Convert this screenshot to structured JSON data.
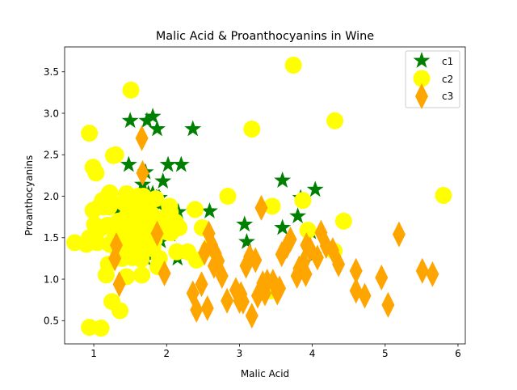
{
  "chart_data": {
    "type": "scatter",
    "title": "Malic Acid & Proanthocyanins in Wine",
    "xlabel": "Malic Acid",
    "ylabel": "Proanthocyanins",
    "xlim": [
      0.6,
      6.1
    ],
    "ylim": [
      0.22,
      3.8
    ],
    "xticks": [
      1,
      2,
      3,
      4,
      5,
      6
    ],
    "yticks": [
      0.5,
      1.0,
      1.5,
      2.0,
      2.5,
      3.0,
      3.5
    ],
    "xtick_labels": [
      "1",
      "2",
      "3",
      "4",
      "5",
      "6"
    ],
    "ytick_labels": [
      "0.5",
      "1.0",
      "1.5",
      "2.0",
      "2.5",
      "3.0",
      "3.5"
    ],
    "grid": false,
    "legend": "top-right",
    "series": [
      {
        "name": "c1",
        "marker": "star",
        "color": "#008000",
        "points": [
          [
            1.71,
            2.29
          ],
          [
            1.78,
            1.28
          ],
          [
            2.36,
            2.81
          ],
          [
            1.95,
            2.18
          ],
          [
            2.59,
            1.82
          ],
          [
            1.76,
            1.97
          ],
          [
            1.87,
            1.98
          ],
          [
            2.15,
            1.25
          ],
          [
            1.64,
            1.98
          ],
          [
            1.35,
            1.85
          ],
          [
            2.16,
            1.81
          ],
          [
            1.48,
            2.38
          ],
          [
            1.73,
            1.57
          ],
          [
            1.73,
            1.81
          ],
          [
            1.87,
            2.81
          ],
          [
            1.81,
            2.96
          ],
          [
            1.92,
            1.46
          ],
          [
            1.57,
            1.97
          ],
          [
            1.59,
            1.66
          ],
          [
            3.1,
            1.45
          ],
          [
            1.63,
            1.35
          ],
          [
            3.8,
            1.76
          ],
          [
            1.86,
            1.98
          ],
          [
            1.6,
            1.38
          ],
          [
            1.81,
            1.95
          ],
          [
            2.05,
            1.54
          ],
          [
            1.77,
            1.86
          ],
          [
            1.72,
            1.66
          ],
          [
            1.9,
            1.98
          ],
          [
            1.68,
            1.57
          ],
          [
            1.5,
            2.01
          ],
          [
            1.66,
            1.63
          ],
          [
            1.83,
            1.85
          ],
          [
            1.53,
            1.66
          ],
          [
            1.8,
            2.01
          ],
          [
            1.81,
            1.92
          ],
          [
            1.64,
            1.81
          ],
          [
            1.65,
            1.75
          ],
          [
            1.5,
            2.91
          ],
          [
            3.59,
            2.19
          ],
          [
            1.71,
            1.25
          ],
          [
            3.84,
            1.98
          ],
          [
            1.89,
            1.98
          ],
          [
            3.98,
            1.57
          ],
          [
            1.77,
            1.42
          ],
          [
            4.04,
            2.08
          ],
          [
            3.59,
            1.62
          ],
          [
            1.68,
            2.02
          ],
          [
            2.02,
            2.38
          ],
          [
            1.73,
            1.65
          ],
          [
            1.73,
            2.91
          ],
          [
            1.65,
            1.46
          ],
          [
            1.75,
            2.03
          ],
          [
            1.9,
            1.66
          ],
          [
            1.67,
            2.14
          ],
          [
            1.73,
            1.87
          ],
          [
            1.7,
            1.87
          ],
          [
            1.97,
            1.85
          ],
          [
            1.43,
            2.0
          ],
          [
            3.07,
            1.66
          ],
          [
            4.02,
            1.29
          ],
          [
            2.2,
            2.38
          ],
          [
            1.81,
            2.03
          ],
          [
            1.68,
            1.47
          ],
          [
            1.99,
            1.72
          ],
          [
            2.06,
            1.7
          ]
        ]
      },
      {
        "name": "c2",
        "marker": "circle",
        "color": "#ffff00",
        "points": [
          [
            0.94,
            0.42
          ],
          [
            1.1,
            0.41
          ],
          [
            1.36,
            0.62
          ],
          [
            1.25,
            0.73
          ],
          [
            1.13,
            1.87
          ],
          [
            1.45,
            1.03
          ],
          [
            1.21,
            1.96
          ],
          [
            1.01,
            1.66
          ],
          [
            1.17,
            1.05
          ],
          [
            0.94,
            2.76
          ],
          [
            1.19,
            1.65
          ],
          [
            1.61,
            2.0
          ],
          [
            1.51,
            3.28
          ],
          [
            1.66,
            1.05
          ],
          [
            1.67,
            1.42
          ],
          [
            1.09,
            1.61
          ],
          [
            1.88,
            1.15
          ],
          [
            3.87,
            1.95
          ],
          [
            1.34,
            1.46
          ],
          [
            1.3,
            2.5
          ],
          [
            1.12,
            1.95
          ],
          [
            3.17,
            2.81
          ],
          [
            0.94,
            1.5
          ],
          [
            1.1,
            1.9
          ],
          [
            2.84,
            2.0
          ],
          [
            1.41,
            1.92
          ],
          [
            1.21,
            1.87
          ],
          [
            1.07,
            1.87
          ],
          [
            1.22,
            1.42
          ],
          [
            2.12,
            1.69
          ],
          [
            1.39,
            1.25
          ],
          [
            3.74,
            3.58
          ],
          [
            0.9,
            1.42
          ],
          [
            1.05,
            1.44
          ],
          [
            1.2,
            1.18
          ],
          [
            1.21,
            1.94
          ],
          [
            4.31,
            2.91
          ],
          [
            2.39,
            1.84
          ],
          [
            1.29,
            1.5
          ],
          [
            5.8,
            2.01
          ],
          [
            2.49,
            1.62
          ],
          [
            1.58,
            1.3
          ],
          [
            1.73,
            1.48
          ],
          [
            1.53,
            1.45
          ],
          [
            1.5,
            1.73
          ],
          [
            1.6,
            1.91
          ],
          [
            2.04,
            1.88
          ],
          [
            1.34,
            1.7
          ],
          [
            2.06,
            1.56
          ],
          [
            4.43,
            1.7
          ],
          [
            1.45,
            1.29
          ],
          [
            1.67,
            1.98
          ],
          [
            1.79,
            1.37
          ],
          [
            3.45,
            1.88
          ],
          [
            2.0,
            1.57
          ],
          [
            0.74,
            1.44
          ],
          [
            1.21,
            2.03
          ],
          [
            1.67,
            1.67
          ],
          [
            1.72,
            1.73
          ],
          [
            2.14,
            1.33
          ],
          [
            1.56,
            1.62
          ],
          [
            1.26,
            1.62
          ],
          [
            1.83,
            1.5
          ],
          [
            0.99,
            2.35
          ],
          [
            1.86,
            1.62
          ],
          [
            1.7,
            1.82
          ],
          [
            1.51,
            1.46
          ],
          [
            2.17,
            1.62
          ],
          [
            1.73,
            1.56
          ],
          [
            1.85,
            1.59
          ],
          [
            1.47,
            1.86
          ],
          [
            1.97,
            1.61
          ],
          [
            1.81,
            1.38
          ],
          [
            1.34,
            1.31
          ],
          [
            1.91,
            1.64
          ],
          [
            1.47,
            1.62
          ],
          [
            1.9,
            1.25
          ],
          [
            2.58,
            1.37
          ],
          [
            0.99,
            1.83
          ],
          [
            1.53,
            1.6
          ],
          [
            1.03,
            2.28
          ],
          [
            1.65,
            1.24
          ],
          [
            3.43,
            0.86
          ],
          [
            3.94,
            1.59
          ],
          [
            1.47,
            1.47
          ],
          [
            1.7,
            1.54
          ],
          [
            1.22,
            2.04
          ],
          [
            1.62,
            1.73
          ],
          [
            1.59,
            1.48
          ],
          [
            1.8,
            1.78
          ],
          [
            1.76,
            1.63
          ],
          [
            1.45,
            2.03
          ],
          [
            1.81,
            1.58
          ],
          [
            1.85,
            1.97
          ],
          [
            2.05,
            1.81
          ],
          [
            1.68,
            2.0
          ],
          [
            1.47,
            1.79
          ],
          [
            1.48,
            1.67
          ],
          [
            1.74,
            1.37
          ],
          [
            4.3,
            1.34
          ],
          [
            1.53,
            1.26
          ],
          [
            1.27,
            2.49
          ],
          [
            1.61,
            1.61
          ],
          [
            1.84,
            1.55
          ],
          [
            2.41,
            1.23
          ],
          [
            2.0,
            1.76
          ],
          [
            1.83,
            1.47
          ],
          [
            1.57,
            1.36
          ],
          [
            1.36,
            1.64
          ],
          [
            1.59,
            1.32
          ],
          [
            2.29,
            1.33
          ]
        ]
      },
      {
        "name": "c3",
        "marker": "thin_diamond",
        "color": "#ffa500",
        "points": [
          [
            1.35,
            0.94
          ],
          [
            1.31,
            1.41
          ],
          [
            1.29,
            1.25
          ],
          [
            1.66,
            2.7
          ],
          [
            1.67,
            2.28
          ],
          [
            1.87,
            1.55
          ],
          [
            2.36,
            0.83
          ],
          [
            2.41,
            0.63
          ],
          [
            2.48,
            0.94
          ],
          [
            2.56,
            0.65
          ],
          [
            2.58,
            1.55
          ],
          [
            2.62,
            1.41
          ],
          [
            2.67,
            1.31
          ],
          [
            2.71,
            1.22
          ],
          [
            2.76,
            1.04
          ],
          [
            2.83,
            0.74
          ],
          [
            2.95,
            0.87
          ],
          [
            3.02,
            0.82
          ],
          [
            3.05,
            0.73
          ],
          [
            3.09,
            1.16
          ],
          [
            3.14,
            1.27
          ],
          [
            3.17,
            0.56
          ],
          [
            3.22,
            1.23
          ],
          [
            3.25,
            0.8
          ],
          [
            3.3,
            1.86
          ],
          [
            3.32,
            0.95
          ],
          [
            3.38,
            0.97
          ],
          [
            3.46,
            0.97
          ],
          [
            3.52,
            0.84
          ],
          [
            3.55,
            0.89
          ],
          [
            3.58,
            1.3
          ],
          [
            3.65,
            1.4
          ],
          [
            3.7,
            1.48
          ],
          [
            3.79,
            1.04
          ],
          [
            3.82,
            1.13
          ],
          [
            3.88,
            1.2
          ],
          [
            3.92,
            1.41
          ],
          [
            3.97,
            1.36
          ],
          [
            4.07,
            1.26
          ],
          [
            4.12,
            1.56
          ],
          [
            4.19,
            1.4
          ],
          [
            4.28,
            1.35
          ],
          [
            4.36,
            1.18
          ],
          [
            4.6,
            1.1
          ],
          [
            4.6,
            0.86
          ],
          [
            4.72,
            0.8
          ],
          [
            4.95,
            1.02
          ],
          [
            5.04,
            0.69
          ],
          [
            5.19,
            1.54
          ],
          [
            5.51,
            1.1
          ],
          [
            5.65,
            1.06
          ],
          [
            1.97,
            1.07
          ],
          [
            2.65,
            1.16
          ],
          [
            3.35,
            0.83
          ],
          [
            2.7,
            1.23
          ],
          [
            3.0,
            0.74
          ],
          [
            3.91,
            1.06
          ],
          [
            2.52,
            1.32
          ]
        ]
      }
    ]
  }
}
